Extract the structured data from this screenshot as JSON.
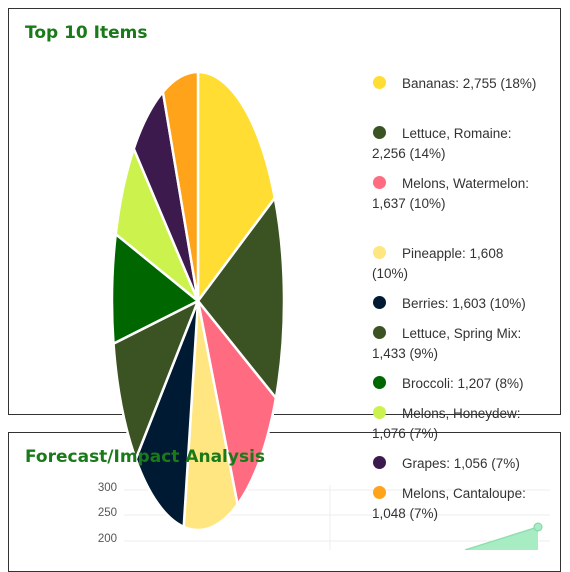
{
  "top_panel": {
    "title": "Top 10 Items"
  },
  "chart_data": [
    {
      "type": "pie",
      "title": "Top 10 Items",
      "slices": [
        {
          "label": "Bananas",
          "value": 2755,
          "percent": 18,
          "color": "#ffdd33"
        },
        {
          "label": "Lettuce, Romaine",
          "value": 2256,
          "percent": 14,
          "color": "#3b5323"
        },
        {
          "label": "Melons, Watermelon",
          "value": 1637,
          "percent": 10,
          "color": "#ff6b80"
        },
        {
          "label": "Pineapple",
          "value": 1608,
          "percent": 10,
          "color": "#ffe680"
        },
        {
          "label": "Berries",
          "value": 1603,
          "percent": 10,
          "color": "#001a33"
        },
        {
          "label": "Lettuce, Spring Mix",
          "value": 1433,
          "percent": 9,
          "color": "#3b5323"
        },
        {
          "label": "Broccoli",
          "value": 1207,
          "percent": 8,
          "color": "#006600"
        },
        {
          "label": "Melons, Honeydew",
          "value": 1076,
          "percent": 7,
          "color": "#ccf24d"
        },
        {
          "label": "Grapes",
          "value": 1056,
          "percent": 7,
          "color": "#3d1a4d"
        },
        {
          "label": "Melons, Cantaloupe",
          "value": 1048,
          "percent": 7,
          "color": "#ffa31a"
        }
      ],
      "legend_position": "right"
    },
    {
      "type": "line",
      "title": "Forecast/Impact Analysis",
      "y_ticks": [
        "300",
        "250",
        "200"
      ],
      "series": [
        {
          "color": "#90e0b0"
        }
      ]
    }
  ],
  "legend": {
    "items": [
      {
        "text": "Bananas: 2,755 (18%)",
        "color": "#ffdd33"
      },
      {
        "text": "Lettuce, Romaine: 2,256 (14%)",
        "color": "#3b5323"
      },
      {
        "text": "Melons, Watermelon: 1,637 (10%)",
        "color": "#ff6b80"
      },
      {
        "text": "Pineapple: 1,608 (10%)",
        "color": "#ffe680"
      },
      {
        "text": "Berries: 1,603 (10%)",
        "color": "#001a33"
      },
      {
        "text": "Lettuce, Spring Mix: 1,433 (9%)",
        "color": "#3b5323"
      },
      {
        "text": "Broccoli: 1,207 (8%)",
        "color": "#006600"
      },
      {
        "text": "Melons, Honeydew: 1,076 (7%)",
        "color": "#ccf24d"
      },
      {
        "text": "Grapes: 1,056 (7%)",
        "color": "#3d1a4d"
      },
      {
        "text": "Melons, Cantaloupe: 1,048 (7%)",
        "color": "#ffa31a"
      }
    ]
  },
  "bottom_panel": {
    "title": "Forecast/Impact Analysis"
  },
  "forecast": {
    "y_ticks": [
      "300",
      "250",
      "200"
    ]
  }
}
